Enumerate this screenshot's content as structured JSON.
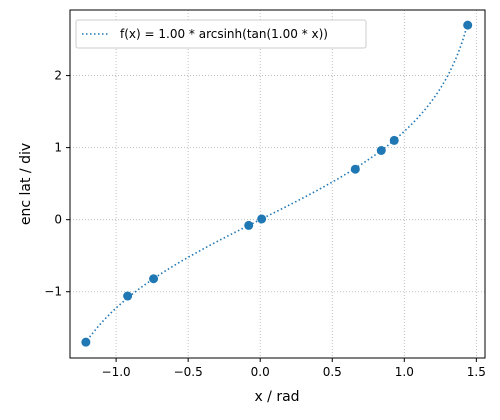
{
  "chart_data": {
    "type": "scatter",
    "xlabel": "x / rad",
    "ylabel": "enc lat / div",
    "xlim": [
      -1.32,
      1.56
    ],
    "ylim": [
      -1.92,
      2.91
    ],
    "xticks": [
      -1.0,
      -0.5,
      0.0,
      0.5,
      1.0,
      1.5
    ],
    "xtick_labels": [
      "−1.0",
      "−0.5",
      "0.0",
      "0.5",
      "1.0",
      "1.5"
    ],
    "yticks": [
      -1,
      0,
      1,
      2
    ],
    "ytick_labels": [
      "−1",
      "0",
      "1",
      "2"
    ],
    "grid": true,
    "legend_position": "top-left",
    "series": [
      {
        "name": "f(x) = 1.00 * arcsinh(tan(1.00 * x))",
        "kind": "line",
        "style": "dotted",
        "color": "#1f77b4",
        "x_range": [
          -1.2,
          1.44
        ],
        "function": "arcsinh(tan(x))"
      },
      {
        "kind": "scatter",
        "color": "#1f77b4",
        "points": [
          {
            "x": -1.21,
            "y": -1.7
          },
          {
            "x": -0.92,
            "y": -1.06
          },
          {
            "x": -0.74,
            "y": -0.82
          },
          {
            "x": -0.08,
            "y": -0.08
          },
          {
            "x": 0.01,
            "y": 0.01
          },
          {
            "x": 0.66,
            "y": 0.7
          },
          {
            "x": 0.84,
            "y": 0.96
          },
          {
            "x": 0.93,
            "y": 1.1
          },
          {
            "x": 1.44,
            "y": 2.7
          }
        ]
      }
    ]
  }
}
